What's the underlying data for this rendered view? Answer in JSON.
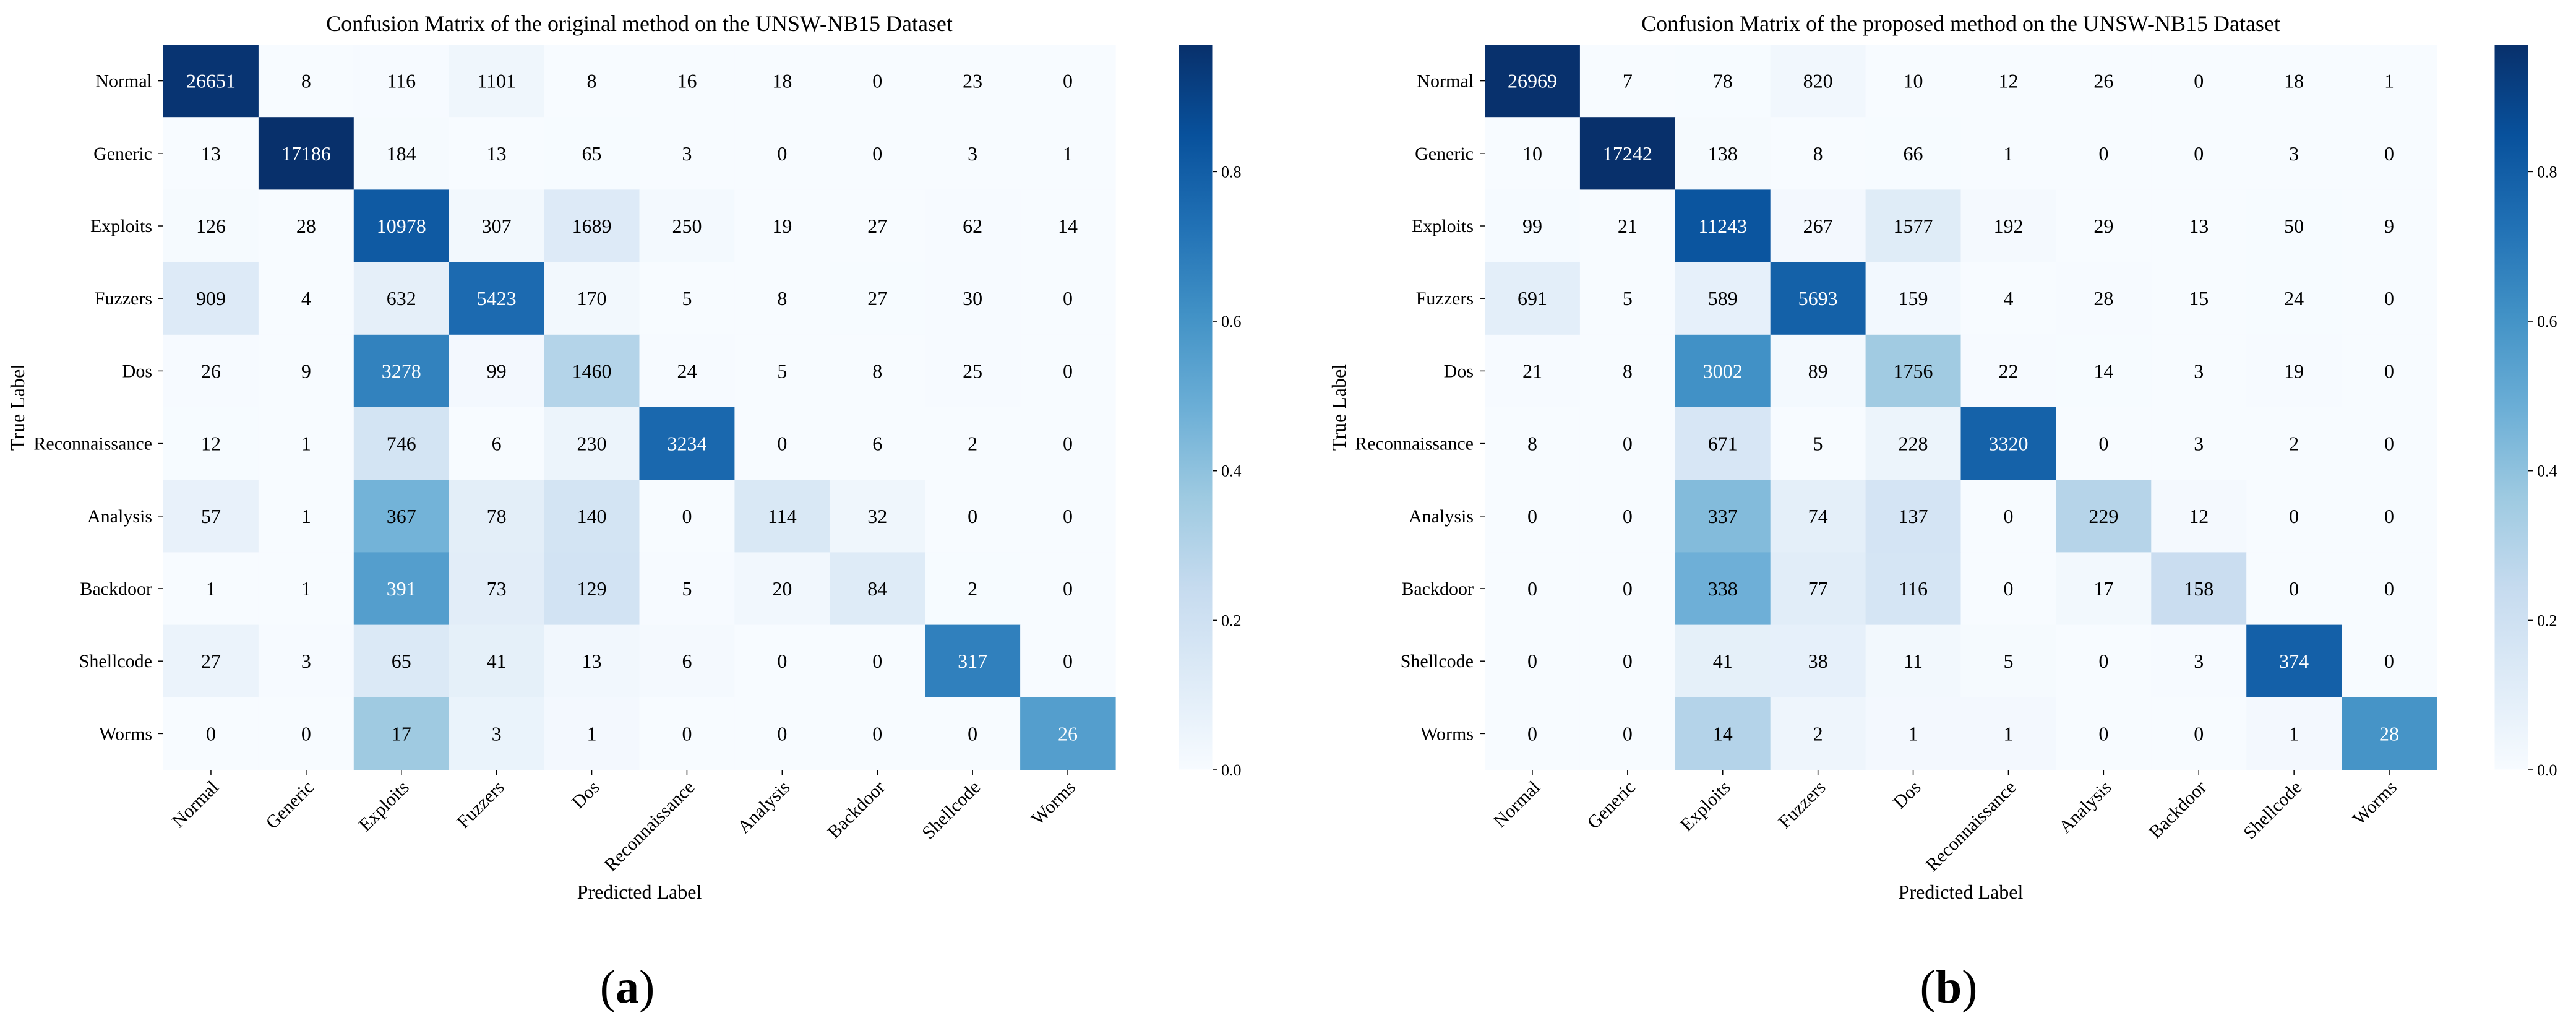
{
  "figure": {
    "colormap": [
      "#f7fbff",
      "#deebf7",
      "#c6dbef",
      "#9ecae1",
      "#6baed6",
      "#4292c6",
      "#2171b5",
      "#08519c",
      "#08306b"
    ],
    "colorbar_ticks": [
      "0.0",
      "0.2",
      "0.4",
      "0.6",
      "0.8"
    ]
  },
  "chart_data": [
    {
      "type": "heatmap",
      "subcaption": "a",
      "title": "Confusion Matrix of the original method on the UNSW-NB15 Dataset",
      "xlabel": "Predicted Label",
      "ylabel": "True Label",
      "normalization": "row",
      "color_range": [
        0,
        0.97
      ],
      "x_categories": [
        "Normal",
        "Generic",
        "Exploits",
        "Fuzzers",
        "Dos",
        "Reconnaissance",
        "Analysis",
        "Backdoor",
        "Shellcode",
        "Worms"
      ],
      "y_categories": [
        "Normal",
        "Generic",
        "Exploits",
        "Fuzzers",
        "Dos",
        "Reconnaissance",
        "Analysis",
        "Backdoor",
        "Shellcode",
        "Worms"
      ],
      "matrix": [
        [
          26651,
          8,
          116,
          1101,
          8,
          16,
          18,
          0,
          23,
          0
        ],
        [
          13,
          17186,
          184,
          13,
          65,
          3,
          0,
          0,
          3,
          1
        ],
        [
          126,
          28,
          10978,
          307,
          1689,
          250,
          19,
          27,
          62,
          14
        ],
        [
          909,
          4,
          632,
          5423,
          170,
          5,
          8,
          27,
          30,
          0
        ],
        [
          26,
          9,
          3278,
          99,
          1460,
          24,
          5,
          8,
          25,
          0
        ],
        [
          12,
          1,
          746,
          6,
          230,
          3234,
          0,
          6,
          2,
          0
        ],
        [
          57,
          1,
          367,
          78,
          140,
          0,
          114,
          32,
          0,
          0
        ],
        [
          1,
          1,
          391,
          73,
          129,
          5,
          20,
          84,
          2,
          0
        ],
        [
          27,
          3,
          65,
          41,
          13,
          6,
          0,
          0,
          317,
          0
        ],
        [
          0,
          0,
          17,
          3,
          1,
          0,
          0,
          0,
          0,
          26
        ]
      ]
    },
    {
      "type": "heatmap",
      "subcaption": "b",
      "title": "Confusion Matrix of the proposed method on the UNSW-NB15 Dataset",
      "xlabel": "Predicted Label",
      "ylabel": "True Label",
      "normalization": "row",
      "color_range": [
        0,
        0.97
      ],
      "x_categories": [
        "Normal",
        "Generic",
        "Exploits",
        "Fuzzers",
        "Dos",
        "Reconnaissance",
        "Analysis",
        "Backdoor",
        "Shellcode",
        "Worms"
      ],
      "y_categories": [
        "Normal",
        "Generic",
        "Exploits",
        "Fuzzers",
        "Dos",
        "Reconnaissance",
        "Analysis",
        "Backdoor",
        "Shellcode",
        "Worms"
      ],
      "matrix": [
        [
          26969,
          7,
          78,
          820,
          10,
          12,
          26,
          0,
          18,
          1
        ],
        [
          10,
          17242,
          138,
          8,
          66,
          1,
          0,
          0,
          3,
          0
        ],
        [
          99,
          21,
          11243,
          267,
          1577,
          192,
          29,
          13,
          50,
          9
        ],
        [
          691,
          5,
          589,
          5693,
          159,
          4,
          28,
          15,
          24,
          0
        ],
        [
          21,
          8,
          3002,
          89,
          1756,
          22,
          14,
          3,
          19,
          0
        ],
        [
          8,
          0,
          671,
          5,
          228,
          3320,
          0,
          3,
          2,
          0
        ],
        [
          0,
          0,
          337,
          74,
          137,
          0,
          229,
          12,
          0,
          0
        ],
        [
          0,
          0,
          338,
          77,
          116,
          0,
          17,
          158,
          0,
          0
        ],
        [
          0,
          0,
          41,
          38,
          11,
          5,
          0,
          3,
          374,
          0
        ],
        [
          0,
          0,
          14,
          2,
          1,
          1,
          0,
          0,
          1,
          28
        ]
      ]
    }
  ]
}
